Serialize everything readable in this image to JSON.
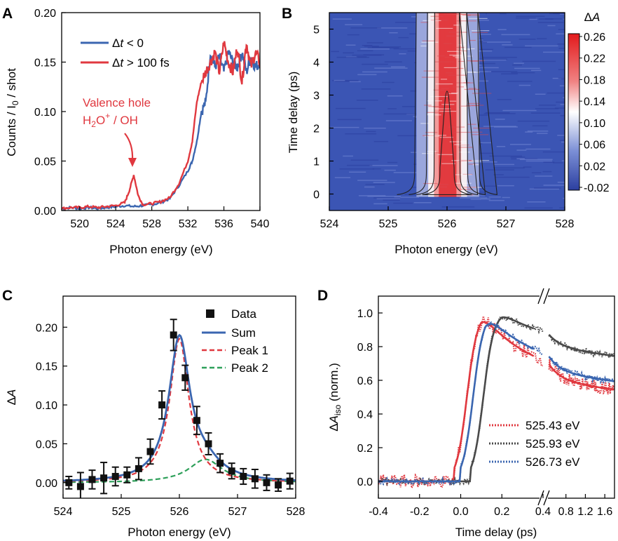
{
  "chart_data": [
    {
      "panel": "A",
      "type": "line",
      "xlabel": "Photon energy (eV)",
      "ylabel": "Counts / I0 / shot",
      "xlim": [
        518,
        540
      ],
      "ylim": [
        0,
        0.2
      ],
      "xticks": [
        520,
        524,
        528,
        532,
        536,
        540
      ],
      "yticks": [
        0.0,
        0.05,
        0.1,
        0.15,
        0.2
      ],
      "annotation": {
        "line1": "Valence hole",
        "line2": "H2O+ / OH",
        "x": 526,
        "y": 0.048
      },
      "series": [
        {
          "name": "Δt < 0",
          "color": "#3b66b0",
          "x": [
            518,
            519,
            520,
            521,
            522,
            523,
            524,
            525,
            526,
            527,
            528,
            529,
            530,
            531,
            532,
            532.5,
            533,
            533.5,
            534,
            534.5,
            535,
            535.5,
            536,
            536.5,
            537,
            537.5,
            538,
            538.5,
            539,
            539.5,
            540
          ],
          "y": [
            0.002,
            0.003,
            0.002,
            0.003,
            0.002,
            0.003,
            0.004,
            0.005,
            0.004,
            0.005,
            0.006,
            0.008,
            0.012,
            0.025,
            0.04,
            0.05,
            0.07,
            0.1,
            0.11,
            0.16,
            0.145,
            0.155,
            0.14,
            0.16,
            0.15,
            0.145,
            0.16,
            0.14,
            0.155,
            0.145,
            0.15
          ]
        },
        {
          "name": "Δt > 100 fs",
          "color": "#e0383f",
          "x": [
            518,
            519,
            520,
            521,
            522,
            523,
            524,
            525,
            525.5,
            526,
            526.5,
            527,
            528,
            529,
            530,
            531,
            532,
            532.5,
            533,
            533.5,
            534,
            534.5,
            535,
            535.5,
            536,
            536.5,
            537,
            537.5,
            538,
            538.5,
            539,
            539.5,
            540
          ],
          "y": [
            0.002,
            0.003,
            0.003,
            0.004,
            0.003,
            0.004,
            0.005,
            0.008,
            0.02,
            0.036,
            0.015,
            0.006,
            0.007,
            0.009,
            0.013,
            0.027,
            0.05,
            0.07,
            0.11,
            0.13,
            0.14,
            0.15,
            0.16,
            0.14,
            0.17,
            0.15,
            0.14,
            0.165,
            0.13,
            0.17,
            0.145,
            0.16,
            0.15
          ]
        }
      ]
    },
    {
      "panel": "B",
      "type": "heatmap",
      "xlabel": "Photon energy (eV)",
      "ylabel": "Time delay (ps)",
      "xlim": [
        524,
        528
      ],
      "ylim": [
        -0.5,
        5.5
      ],
      "xticks": [
        524,
        525,
        526,
        527,
        528
      ],
      "yticks": [
        0,
        1,
        2,
        3,
        4,
        5
      ],
      "colorbar_title": "ΔA",
      "colorbar_ticks": [
        "0.26",
        "0.22",
        "0.18",
        "0.14",
        "0.10",
        "0.06",
        "0.02",
        "-0.02"
      ],
      "peak_center_eV": 526.0,
      "peak_max": 0.26
    },
    {
      "panel": "C",
      "type": "scatter",
      "xlabel": "Photon energy (eV)",
      "ylabel": "ΔA",
      "xlim": [
        524,
        528
      ],
      "ylim": [
        -0.02,
        0.24
      ],
      "xticks": [
        524,
        525,
        526,
        527,
        528
      ],
      "yticks": [
        0.0,
        0.05,
        0.1,
        0.15,
        0.2
      ],
      "legend": [
        "Data",
        "Sum",
        "Peak 1",
        "Peak 2"
      ],
      "data": {
        "x": [
          524.1,
          524.3,
          524.5,
          524.7,
          524.9,
          525.1,
          525.3,
          525.5,
          525.7,
          525.9,
          526.1,
          526.3,
          526.5,
          526.7,
          526.9,
          527.1,
          527.3,
          527.5,
          527.7,
          527.9
        ],
        "y": [
          0.0,
          -0.005,
          0.004,
          0.006,
          0.008,
          0.01,
          0.018,
          0.04,
          0.1,
          0.19,
          0.135,
          0.08,
          0.05,
          0.025,
          0.015,
          0.008,
          0.005,
          0.0,
          -0.003,
          0.002
        ],
        "err": [
          0.008,
          0.018,
          0.012,
          0.02,
          0.012,
          0.01,
          0.014,
          0.016,
          0.018,
          0.02,
          0.016,
          0.018,
          0.014,
          0.012,
          0.01,
          0.01,
          0.012,
          0.01,
          0.008,
          0.01
        ]
      },
      "series": [
        {
          "name": "Sum",
          "color": "#3b66b0",
          "style": "solid",
          "center": 526.0,
          "amp": 0.188,
          "hwhm": 0.22,
          "x2": 526.45,
          "amp2": 0.03,
          "hwhm2": 0.35
        },
        {
          "name": "Peak 1",
          "color": "#e0383f",
          "style": "dashed",
          "center": 526.0,
          "amp": 0.185,
          "hwhm": 0.2
        },
        {
          "name": "Peak 2",
          "color": "#2ea05a",
          "style": "dashed",
          "center": 526.45,
          "amp": 0.03,
          "hwhm": 0.35
        }
      ]
    },
    {
      "panel": "D",
      "type": "line",
      "xlabel": "Time delay (ps)",
      "ylabel": "ΔA_iso (norm.)",
      "ylim": [
        -0.1,
        1.1
      ],
      "xticks_left": [
        "-0.4",
        "-0.2",
        "0.0",
        "0.2",
        "0.4"
      ],
      "xticks_right": [
        "0.8",
        "1.2",
        "1.6"
      ],
      "yticks": [
        0.0,
        0.2,
        0.4,
        0.6,
        0.8,
        1.0
      ],
      "series": [
        {
          "name": "525.43 eV",
          "color": "#e0383f",
          "rise": -0.03,
          "peak_t": 0.1,
          "tail": 0.6
        },
        {
          "name": "525.93 eV",
          "color": "#4a4a4a",
          "rise": 0.05,
          "peak_t": 0.2,
          "tail": 0.8
        },
        {
          "name": "526.73 eV",
          "color": "#3b66b0",
          "rise": 0.0,
          "peak_t": 0.12,
          "tail": 0.65
        }
      ]
    }
  ],
  "labels": {
    "A": "A",
    "B": "B",
    "C": "C",
    "D": "D",
    "legA1_pre": "Δ",
    "legA1_t": "t",
    "legA1_post": " < 0",
    "legA2_pre": "Δ",
    "legA2_t": "t",
    "legA2_post": " > 100 fs",
    "annA1": "Valence hole",
    "annA2_pre": "H",
    "annA2_sub": "2",
    "annA2_mid": "O",
    "annA2_sup": "+",
    "annA2_post": " / OH",
    "ylabelA_pre": "Counts / I",
    "ylabelA_sub": "0",
    "ylabelA_post": " / shot",
    "ylabelD_pre": "Δ",
    "ylabelD_A": "A",
    "ylabelD_sub": "iso",
    "ylabelD_post": " (norm.)",
    "cbar_pre": "Δ",
    "cbar_A": "A",
    "ylabelC_pre": "Δ",
    "ylabelC_A": "A",
    "legC": [
      "Data",
      "Sum",
      "Peak 1",
      "Peak 2"
    ],
    "legD": [
      "525.43 eV",
      "525.93 eV",
      "526.73 eV"
    ]
  }
}
